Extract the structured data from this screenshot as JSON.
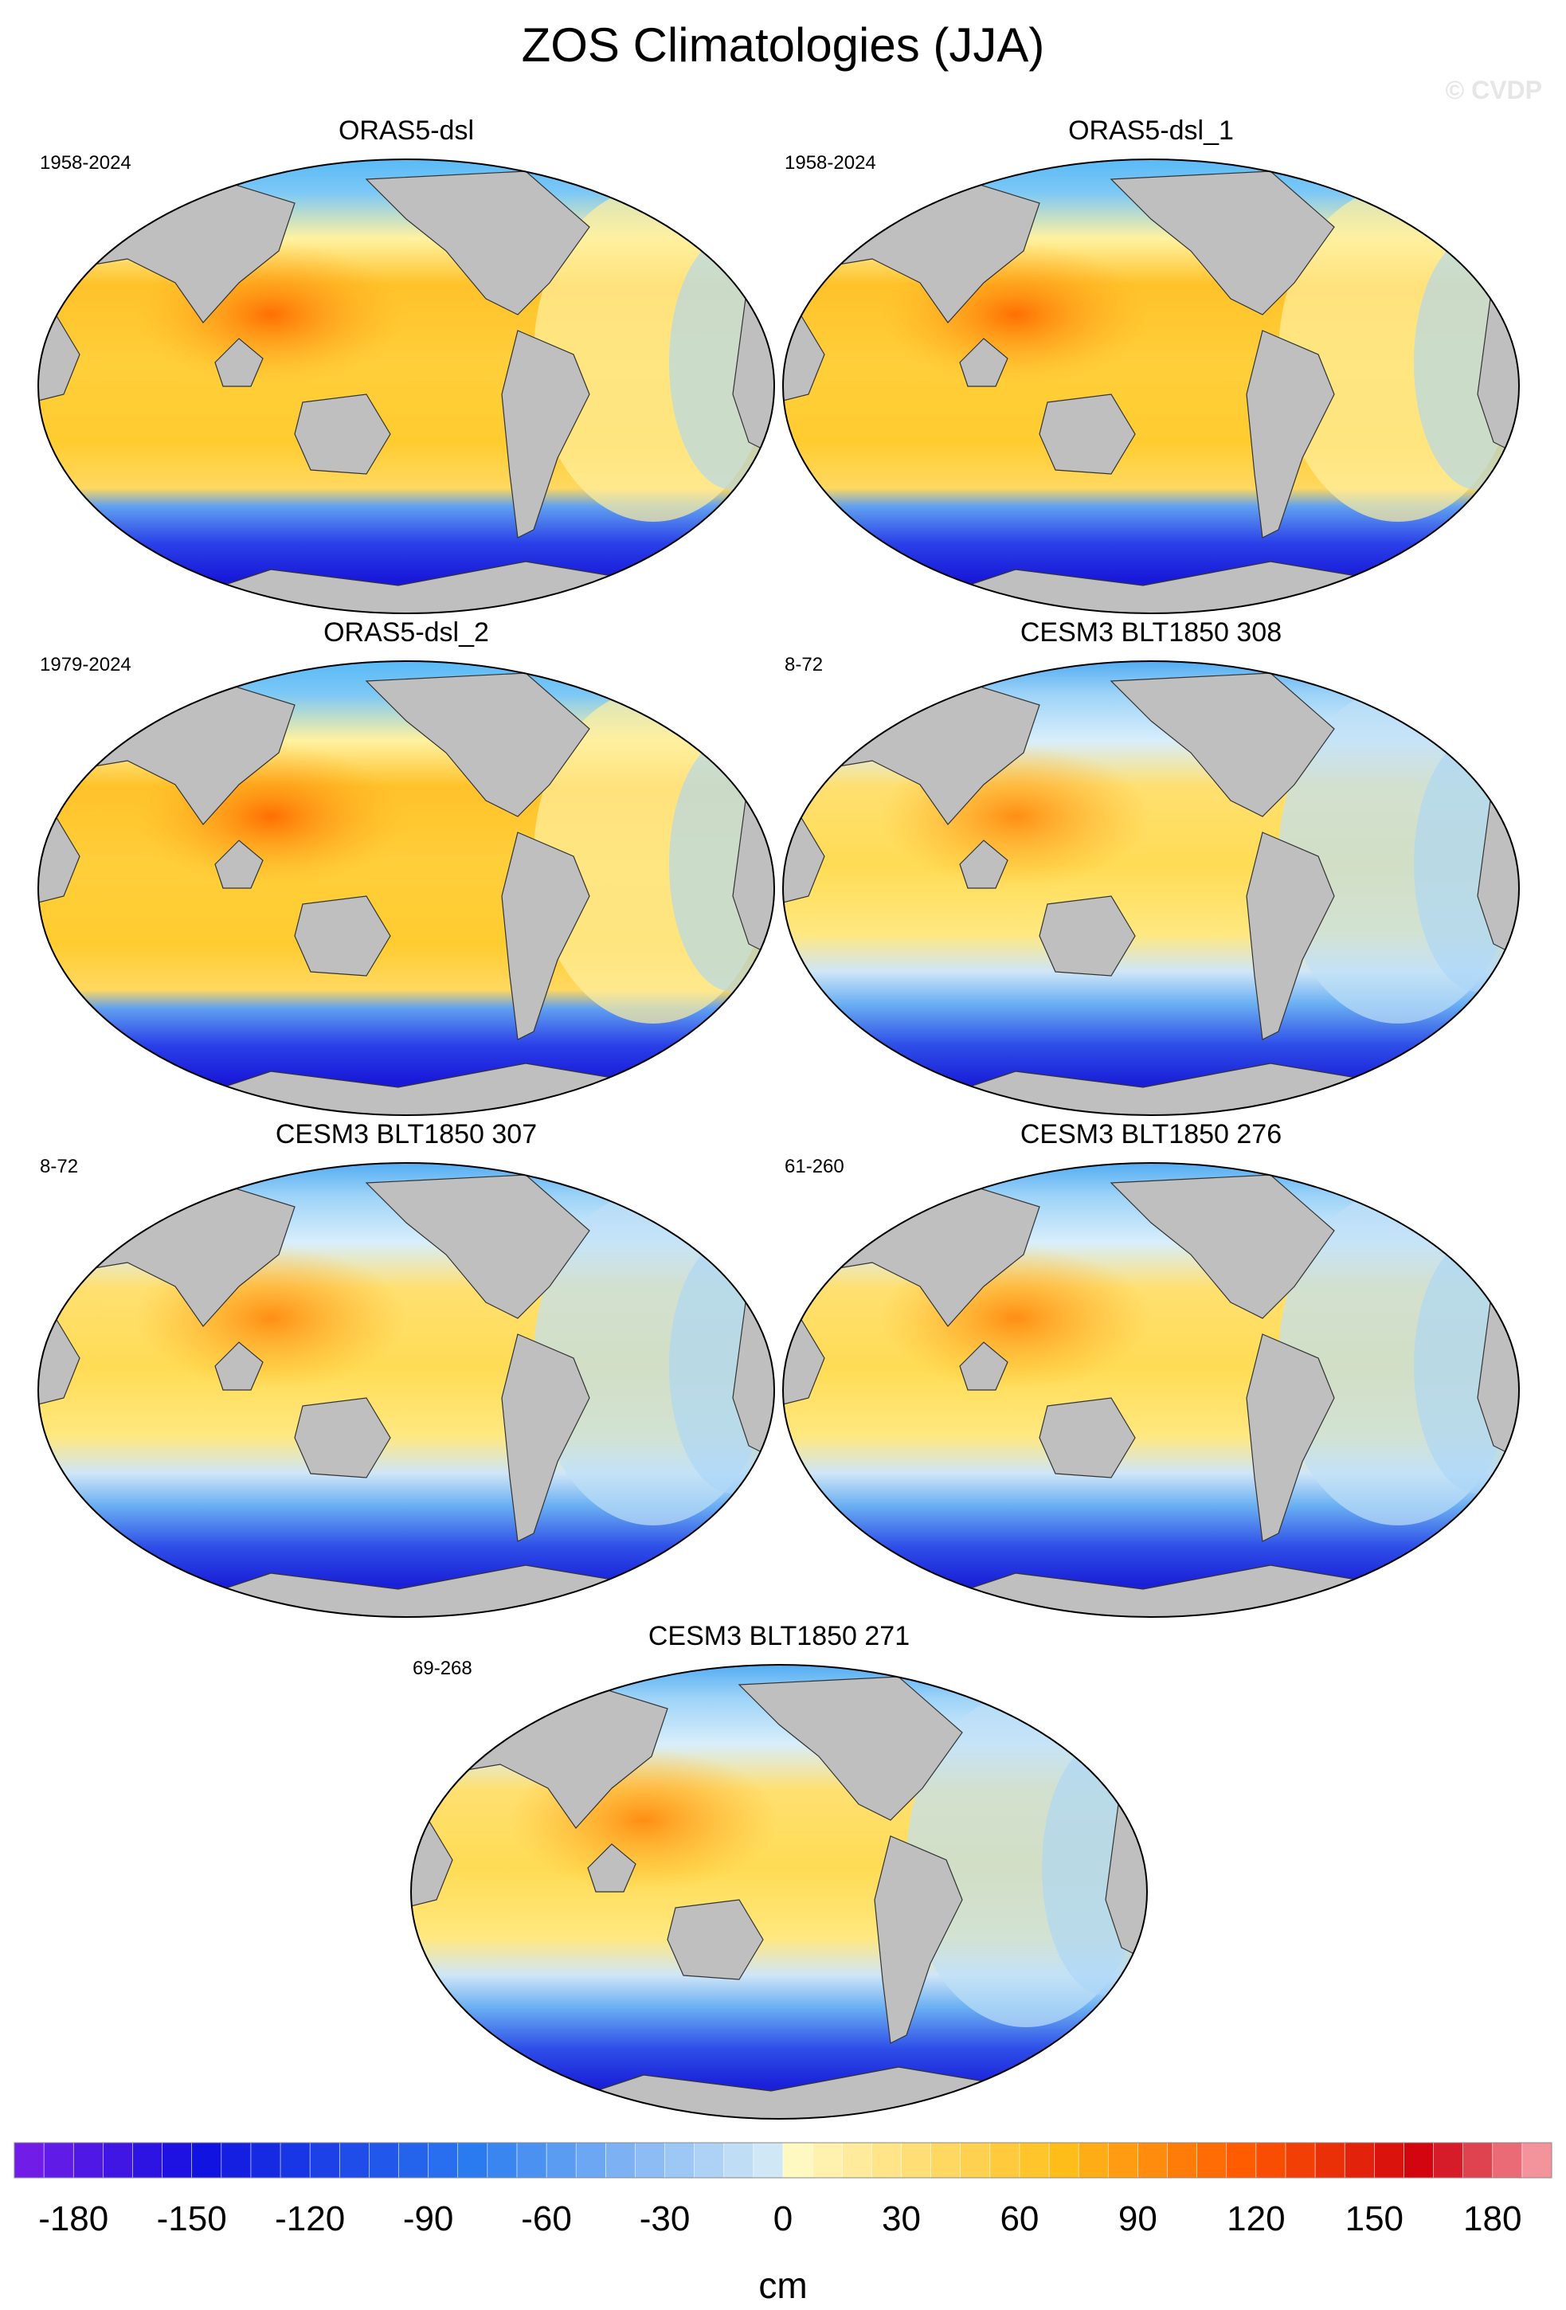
{
  "figure": {
    "title": "ZOS Climatologies (JJA)",
    "watermark": "© CVDP"
  },
  "panels": [
    {
      "title": "ORAS5-dsl",
      "years": "1958-2024",
      "variant": "oras"
    },
    {
      "title": "ORAS5-dsl_1",
      "years": "1958-2024",
      "variant": "oras"
    },
    {
      "title": "ORAS5-dsl_2",
      "years": "1979-2024",
      "variant": "oras"
    },
    {
      "title": "CESM3 BLT1850 308",
      "years": "8-72",
      "variant": "cesm"
    },
    {
      "title": "CESM3 BLT1850 307",
      "years": "8-72",
      "variant": "cesm"
    },
    {
      "title": "CESM3 BLT1850 276",
      "years": "61-260",
      "variant": "cesm"
    },
    {
      "title": "CESM3 BLT1850 271",
      "years": "69-268",
      "variant": "cesm"
    }
  ],
  "colorbar": {
    "unit": "cm",
    "tick_labels": [
      "-180",
      "-150",
      "-120",
      "-90",
      "-60",
      "-30",
      "0",
      "30",
      "60",
      "90",
      "120",
      "150",
      "180"
    ],
    "range": [
      -195,
      195
    ],
    "colors": {
      "very_low": "#7b1ee8",
      "low": "#1010e0",
      "mid_low": "#2a7cf0",
      "near_zero_low": "#cfe8f6",
      "near_zero_high": "#fff8c0",
      "mid_high": "#ffbf1a",
      "high": "#ff5a00",
      "very_high": "#d00010",
      "top": "#f8a8b0"
    }
  },
  "map_colors": {
    "land": "#bfbfbf",
    "outline": "#333333"
  }
}
